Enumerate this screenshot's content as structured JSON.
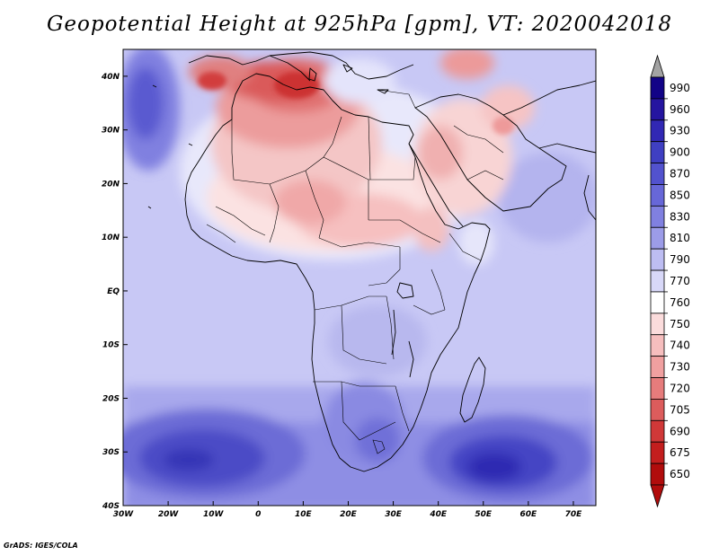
{
  "title": "Geopotential Height at 925hPa [gpm], VT: 2020042018",
  "credit": "GrADS: IGES/COLA",
  "map": {
    "region": "Africa",
    "projection": "latlon",
    "lon_range": [
      -30,
      75
    ],
    "lat_range": [
      -40,
      45
    ],
    "lon_ticks": [
      "30W",
      "20W",
      "10W",
      "0",
      "10E",
      "20E",
      "30E",
      "40E",
      "50E",
      "60E",
      "70E"
    ],
    "lat_ticks": [
      "40N",
      "30N",
      "20N",
      "10N",
      "EQ",
      "10S",
      "20S",
      "30S",
      "40S"
    ],
    "field": {
      "background_band": "770-790",
      "high_centers": [
        {
          "area": "South Atlantic",
          "band": "930-960"
        },
        {
          "area": "Indian Ocean south of Madagascar",
          "band": "930-960"
        },
        {
          "area": "North Atlantic west of Morocco",
          "band": "870-900"
        }
      ],
      "low_centers": [
        {
          "area": "Algeria / Tunisia / Sahara",
          "band": "690-705"
        },
        {
          "area": "Sahel / Chad / Sudan",
          "band": "740-760"
        },
        {
          "area": "Arabian Peninsula",
          "band": "740-760"
        }
      ]
    }
  },
  "colorbar": {
    "labels": [
      "990",
      "960",
      "930",
      "900",
      "870",
      "850",
      "830",
      "810",
      "790",
      "770",
      "760",
      "750",
      "740",
      "730",
      "720",
      "705",
      "690",
      "675",
      "650"
    ],
    "colors": [
      "#120387",
      "#2515a0",
      "#3128b4",
      "#3f3fc2",
      "#5252ce",
      "#6767d8",
      "#8080e0",
      "#9c9ce8",
      "#bdbdf2",
      "#d8d8f8",
      "#ffffff",
      "#fbdcdc",
      "#f6bebe",
      "#f0a0a0",
      "#e67c7c",
      "#dc5c5c",
      "#d03838",
      "#c31e1e",
      "#b10c0c"
    ],
    "arrow_colors": {
      "top": "#a3a3a3",
      "bottom": "#b10c0c"
    }
  }
}
